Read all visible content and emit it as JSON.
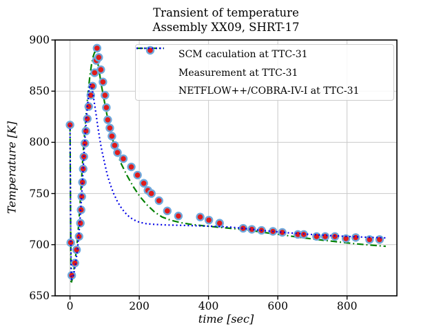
{
  "chart_data": {
    "type": "line",
    "title": "Transient of temperature",
    "subtitle": "Assembly XX09, SHRT-17",
    "xlabel": "time [sec]",
    "ylabel": "Temperature [K]",
    "xlim": [
      -43,
      944
    ],
    "ylim": [
      650,
      900
    ],
    "xticks": [
      0,
      200,
      400,
      600,
      800
    ],
    "yticks": [
      650,
      700,
      750,
      800,
      850,
      900
    ],
    "grid": true,
    "grid_color": "#c9c9c9",
    "spine_color": "#000000",
    "legend_position": "upper right",
    "series": [
      {
        "name": "SCM caculation at TTC-31",
        "kind": "line",
        "linestyle": "dashdot",
        "color": "#008000",
        "points": [
          [
            0,
            817
          ],
          [
            1,
            765
          ],
          [
            2,
            710
          ],
          [
            3,
            662
          ],
          [
            8,
            668
          ],
          [
            14,
            682
          ],
          [
            20,
            700
          ],
          [
            25,
            720
          ],
          [
            30,
            745
          ],
          [
            34,
            768
          ],
          [
            38,
            790
          ],
          [
            42,
            808
          ],
          [
            47,
            830
          ],
          [
            52,
            848
          ],
          [
            57,
            864
          ],
          [
            62,
            876
          ],
          [
            67,
            884
          ],
          [
            71,
            888
          ],
          [
            75,
            886
          ],
          [
            80,
            878
          ],
          [
            85,
            868
          ],
          [
            90,
            857
          ],
          [
            96,
            846
          ],
          [
            103,
            833
          ],
          [
            112,
            818
          ],
          [
            122,
            804
          ],
          [
            134,
            791
          ],
          [
            148,
            779
          ],
          [
            164,
            768
          ],
          [
            182,
            757
          ],
          [
            202,
            747
          ],
          [
            222,
            739
          ],
          [
            244,
            732
          ],
          [
            266,
            727
          ],
          [
            290,
            724
          ],
          [
            320,
            721.5
          ],
          [
            350,
            719.8
          ],
          [
            390,
            718.3
          ],
          [
            430,
            717
          ],
          [
            470,
            715.8
          ],
          [
            500,
            714.8
          ],
          [
            540,
            713
          ],
          [
            580,
            711
          ],
          [
            620,
            709.2
          ],
          [
            660,
            707.3
          ],
          [
            700,
            705.6
          ],
          [
            740,
            704
          ],
          [
            780,
            702.5
          ],
          [
            820,
            701
          ],
          [
            860,
            699.8
          ],
          [
            900,
            698.7
          ],
          [
            912,
            698.4
          ]
        ]
      },
      {
        "name": "Measurement at TTC-31",
        "kind": "scatter",
        "marker": "circle",
        "face_color": "#e01b1b",
        "edge_color": "#6fa8dc",
        "points": [
          [
            0,
            817
          ],
          [
            2,
            702
          ],
          [
            5,
            670
          ],
          [
            14,
            682
          ],
          [
            19,
            695
          ],
          [
            26,
            708
          ],
          [
            30,
            721
          ],
          [
            32,
            734
          ],
          [
            34,
            747
          ],
          [
            36,
            761
          ],
          [
            38,
            774
          ],
          [
            40,
            786
          ],
          [
            43,
            799
          ],
          [
            46,
            811
          ],
          [
            50,
            823
          ],
          [
            54,
            835
          ],
          [
            60,
            846
          ],
          [
            65,
            855
          ],
          [
            71,
            868
          ],
          [
            76,
            880
          ],
          [
            78,
            892
          ],
          [
            83,
            883
          ],
          [
            89,
            871
          ],
          [
            95,
            859
          ],
          [
            101,
            846
          ],
          [
            105,
            834
          ],
          [
            109,
            822
          ],
          [
            115,
            814
          ],
          [
            121,
            806
          ],
          [
            129,
            797
          ],
          [
            137,
            790
          ],
          [
            154,
            784
          ],
          [
            177,
            776
          ],
          [
            195,
            768
          ],
          [
            213,
            760
          ],
          [
            225,
            753
          ],
          [
            235,
            750
          ],
          [
            257,
            743
          ],
          [
            281,
            733
          ],
          [
            313,
            728
          ],
          [
            376,
            727
          ],
          [
            401,
            724
          ],
          [
            432,
            721
          ],
          [
            500,
            716
          ],
          [
            525,
            715
          ],
          [
            553,
            714
          ],
          [
            586,
            713
          ],
          [
            613,
            712
          ],
          [
            658,
            710
          ],
          [
            675,
            710
          ],
          [
            712,
            708
          ],
          [
            737,
            708
          ],
          [
            765,
            708
          ],
          [
            797,
            706
          ],
          [
            825,
            707
          ],
          [
            865,
            705
          ],
          [
            894,
            705
          ]
        ]
      },
      {
        "name": "NETFLOW++/COBRA-IV-I at TTC-31",
        "kind": "line",
        "linestyle": "dotted",
        "color": "#0000e6",
        "points": [
          [
            0,
            817
          ],
          [
            1,
            767
          ],
          [
            2,
            715
          ],
          [
            4,
            666
          ],
          [
            10,
            670
          ],
          [
            16,
            681
          ],
          [
            22,
            697
          ],
          [
            27,
            716
          ],
          [
            32,
            740
          ],
          [
            36,
            762
          ],
          [
            40,
            786
          ],
          [
            44,
            808
          ],
          [
            48,
            826
          ],
          [
            52,
            841
          ],
          [
            55,
            851
          ],
          [
            58,
            857
          ],
          [
            62,
            855
          ],
          [
            66,
            848
          ],
          [
            70,
            839
          ],
          [
            75,
            828
          ],
          [
            80,
            816
          ],
          [
            86,
            803
          ],
          [
            92,
            792
          ],
          [
            99,
            781
          ],
          [
            107,
            769
          ],
          [
            116,
            759
          ],
          [
            126,
            750
          ],
          [
            137,
            742
          ],
          [
            150,
            735
          ],
          [
            165,
            729
          ],
          [
            182,
            724.5
          ],
          [
            200,
            722
          ],
          [
            220,
            720.5
          ],
          [
            245,
            719.8
          ],
          [
            275,
            719.3
          ],
          [
            310,
            719
          ],
          [
            350,
            718.6
          ],
          [
            390,
            718.2
          ],
          [
            430,
            717.8
          ],
          [
            470,
            717
          ],
          [
            510,
            715.5
          ],
          [
            550,
            714
          ],
          [
            590,
            712.8
          ],
          [
            630,
            711.6
          ],
          [
            670,
            710.6
          ],
          [
            710,
            709.7
          ],
          [
            750,
            708.9
          ],
          [
            790,
            708.2
          ],
          [
            830,
            707.6
          ],
          [
            870,
            707.1
          ],
          [
            915,
            706.6
          ]
        ]
      }
    ]
  }
}
